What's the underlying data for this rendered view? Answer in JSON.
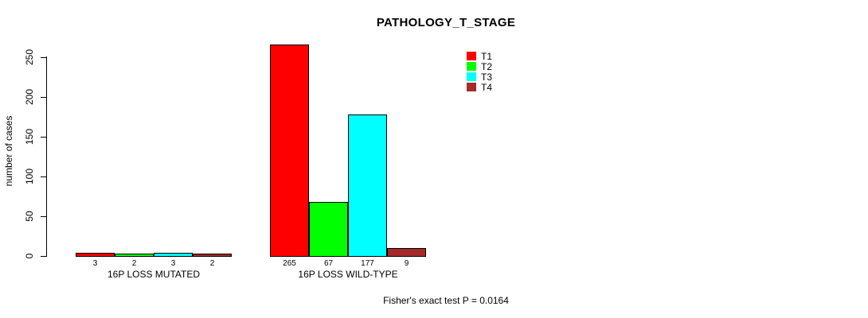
{
  "chart_data": {
    "type": "bar",
    "title": "PATHOLOGY_T_STAGE",
    "xlabel": "",
    "ylabel": "number of cases",
    "ylim": [
      0,
      250
    ],
    "yticks": [
      0,
      50,
      100,
      150,
      200,
      250
    ],
    "grid": false,
    "legend_position": "top-right",
    "bar_value_labels_shown": true,
    "categories": [
      "16P LOSS MUTATED",
      "16P LOSS WILD-TYPE"
    ],
    "series": [
      {
        "name": "T1",
        "color": "#ff0000",
        "values": [
          3,
          265
        ]
      },
      {
        "name": "T2",
        "color": "#00ff00",
        "values": [
          2,
          67
        ]
      },
      {
        "name": "T3",
        "color": "#00ffff",
        "values": [
          3,
          177
        ]
      },
      {
        "name": "T4",
        "color": "#a52a2a",
        "values": [
          2,
          9
        ]
      }
    ],
    "annotation": "Fisher's exact test P = 0.0164"
  }
}
